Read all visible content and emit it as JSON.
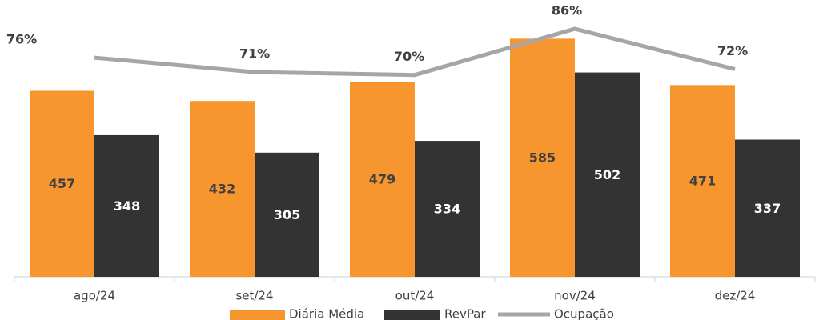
{
  "chart_data": {
    "type": "bar",
    "categories": [
      "ago/24",
      "set/24",
      "out/24",
      "nov/24",
      "dez/24"
    ],
    "ylim": [
      0,
      680
    ],
    "y2lim": [
      0,
      96
    ],
    "series": [
      {
        "name": "Diária Média",
        "color": "#f7962f",
        "values": [
          457,
          432,
          479,
          585,
          471
        ]
      },
      {
        "name": "RevPar",
        "color": "#333333",
        "values": [
          348,
          305,
          334,
          502,
          337
        ]
      },
      {
        "name": "Ocupação",
        "color": "#a6a6a6",
        "type": "line",
        "axis": "y2",
        "values": [
          76,
          71,
          70,
          86,
          72
        ],
        "value_labels": [
          "76%",
          "71%",
          "70%",
          "86%",
          "72%"
        ]
      }
    ]
  }
}
